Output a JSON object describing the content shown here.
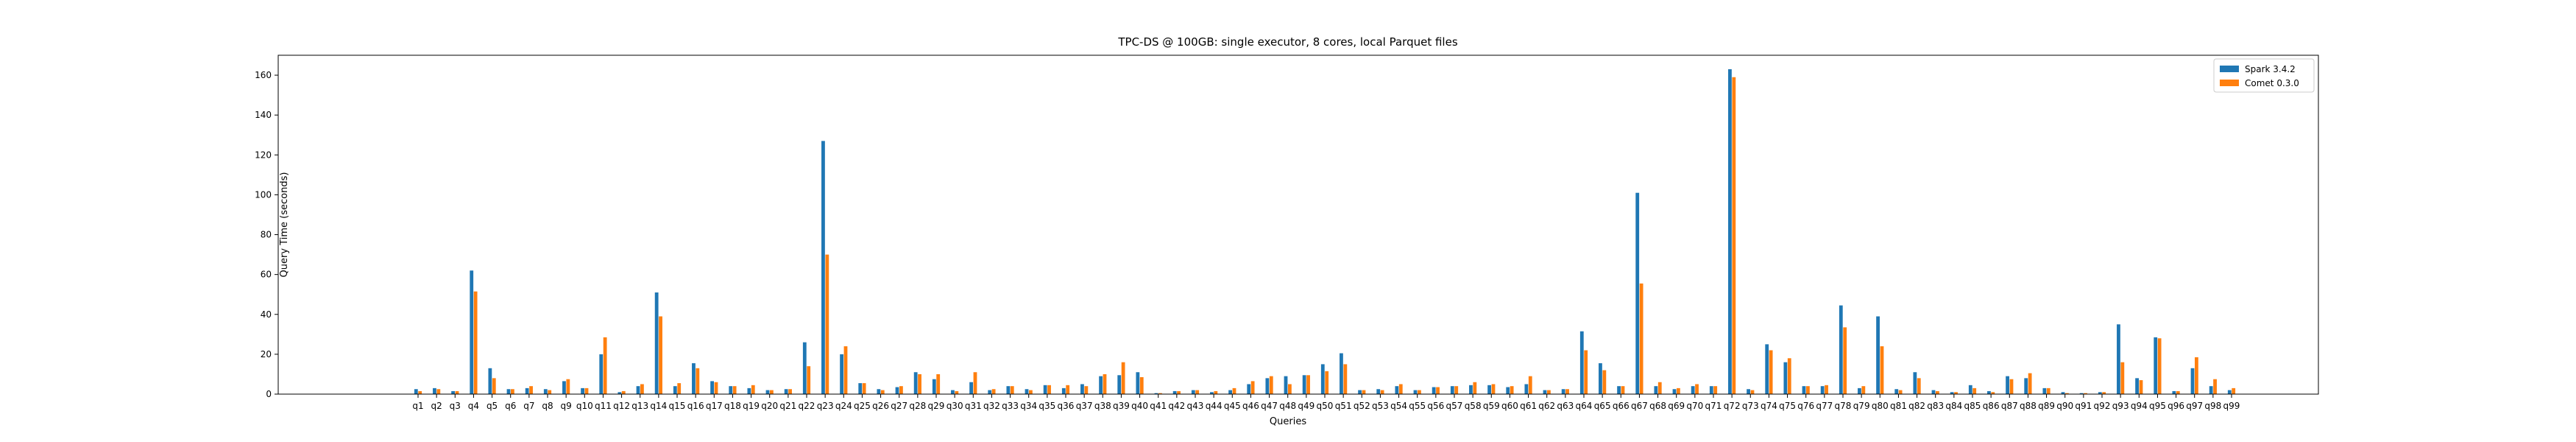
{
  "chart_data": {
    "type": "bar",
    "title": "TPC-DS @ 100GB: single executor, 8 cores, local Parquet files",
    "xlabel": "Queries",
    "ylabel": "Query Time (seconds)",
    "ylim": [
      0,
      170
    ],
    "yticks": [
      0,
      20,
      40,
      60,
      80,
      100,
      120,
      140,
      160
    ],
    "grid": false,
    "legend_position": "top-right",
    "categories": [
      "q1",
      "q2",
      "q3",
      "q4",
      "q5",
      "q6",
      "q7",
      "q8",
      "q9",
      "q10",
      "q11",
      "q12",
      "q13",
      "q14",
      "q15",
      "q16",
      "q17",
      "q18",
      "q19",
      "q20",
      "q21",
      "q22",
      "q23",
      "q24",
      "q25",
      "q26",
      "q27",
      "q28",
      "q29",
      "q30",
      "q31",
      "q32",
      "q33",
      "q34",
      "q35",
      "q36",
      "q37",
      "q38",
      "q39",
      "q40",
      "q41",
      "q42",
      "q43",
      "q44",
      "q45",
      "q46",
      "q47",
      "q48",
      "q49",
      "q50",
      "q51",
      "q52",
      "q53",
      "q54",
      "q55",
      "q56",
      "q57",
      "q58",
      "q59",
      "q60",
      "q61",
      "q62",
      "q63",
      "q64",
      "q65",
      "q66",
      "q67",
      "q68",
      "q69",
      "q70",
      "q71",
      "q72",
      "q73",
      "q74",
      "q75",
      "q76",
      "q77",
      "q78",
      "q79",
      "q80",
      "q81",
      "q82",
      "q83",
      "q84",
      "q85",
      "q86",
      "q87",
      "q88",
      "q89",
      "q90",
      "q91",
      "q92",
      "q93",
      "q94",
      "q95",
      "q96",
      "q97",
      "q98",
      "q99"
    ],
    "series": [
      {
        "name": "Spark 3.4.2",
        "color": "#1f77b4",
        "values": [
          2.5,
          3,
          1.5,
          62,
          13,
          2.5,
          3,
          2.5,
          6.5,
          3,
          20,
          1,
          4,
          51,
          4,
          15.5,
          6.5,
          4,
          3,
          2,
          2.5,
          26,
          127,
          20,
          5.5,
          2.5,
          3.5,
          11,
          7.5,
          2,
          6,
          2,
          4,
          2.5,
          4.5,
          3,
          5,
          9,
          9.5,
          11,
          0.5,
          1.5,
          2,
          1,
          2,
          5,
          8,
          9,
          9.5,
          15,
          20.5,
          2,
          2.5,
          4,
          2,
          3.5,
          4,
          4.5,
          4.5,
          3.5,
          5,
          2,
          2.5,
          31.5,
          15.5,
          4,
          101,
          4,
          2.5,
          4,
          4,
          163,
          2.5,
          25,
          16,
          4,
          4,
          44.5,
          3,
          39,
          2.5,
          11,
          2,
          1,
          4.5,
          1.5,
          9,
          8,
          3,
          1,
          0.5,
          1,
          35,
          8,
          28.5,
          1.5,
          13,
          4,
          2
        ]
      },
      {
        "name": "Comet 0.3.0",
        "color": "#ff7f0e",
        "values": [
          1.5,
          2.5,
          1.5,
          51.5,
          8,
          2.5,
          4,
          2,
          7.5,
          3,
          28.5,
          1.5,
          5,
          39,
          5.5,
          13,
          6,
          4,
          4.5,
          2,
          2.5,
          14,
          70,
          24,
          5.5,
          2,
          4,
          10,
          10,
          1.5,
          11,
          2.5,
          4,
          2,
          4.5,
          4.5,
          4,
          10,
          16,
          8.5,
          0.5,
          1.5,
          2,
          1.5,
          3,
          6.5,
          9,
          5,
          9.5,
          11.5,
          15,
          2,
          2,
          5,
          2,
          3.5,
          4,
          6,
          5,
          4,
          9,
          2,
          2.5,
          22,
          12,
          4,
          55.5,
          6,
          3,
          5,
          4,
          159,
          2,
          22,
          18,
          4,
          4.5,
          33.5,
          4,
          24,
          2,
          8,
          1.5,
          1,
          3,
          1,
          7.5,
          10.5,
          3,
          0.5,
          0.5,
          1,
          16,
          7,
          28,
          1.5,
          18.5,
          7.5,
          3
        ]
      }
    ]
  }
}
